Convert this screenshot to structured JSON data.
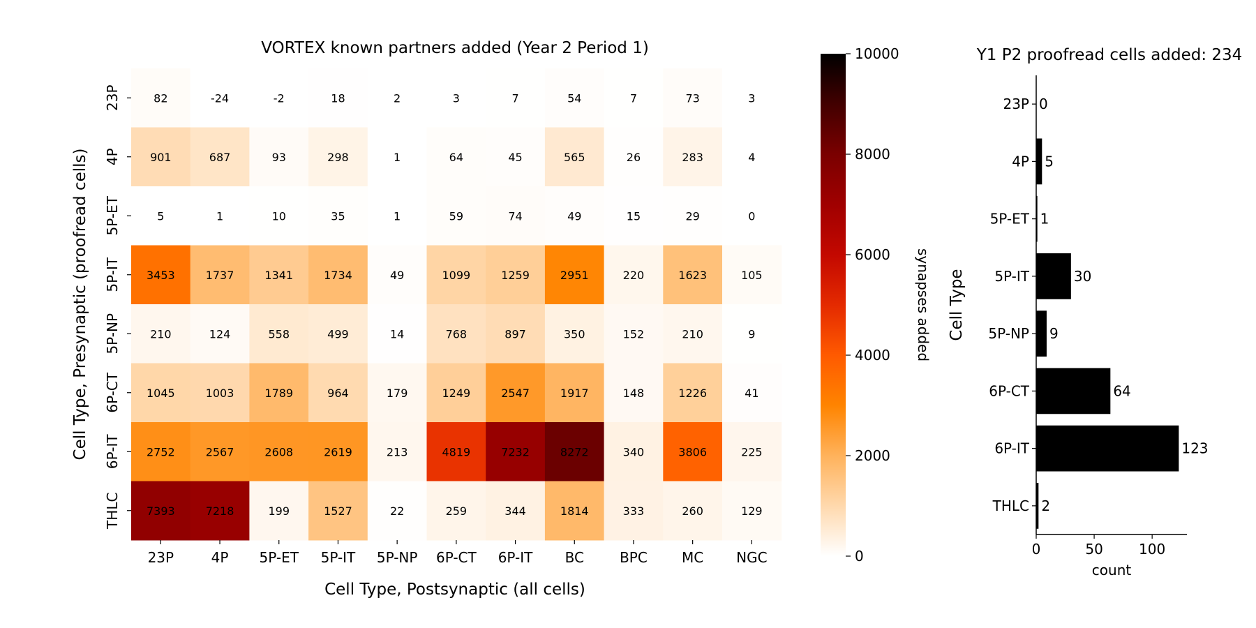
{
  "chart_data": [
    {
      "type": "heatmap",
      "title": "VORTEX known partners added (Year 2 Period 1)",
      "xlabel": "Cell Type, Postsynaptic (all cells)",
      "ylabel": "Cell Type, Presynaptic (proofread cells)",
      "x_categories": [
        "23P",
        "4P",
        "5P-ET",
        "5P-IT",
        "5P-NP",
        "6P-CT",
        "6P-IT",
        "BC",
        "BPC",
        "MC",
        "NGC"
      ],
      "y_categories": [
        "23P",
        "4P",
        "5P-ET",
        "5P-IT",
        "5P-NP",
        "6P-CT",
        "6P-IT",
        "THLC"
      ],
      "values": [
        [
          82,
          -24,
          -2,
          18,
          2,
          3,
          7,
          54,
          7,
          73,
          3
        ],
        [
          901,
          687,
          93,
          298,
          1,
          64,
          45,
          565,
          26,
          283,
          4
        ],
        [
          5,
          1,
          10,
          35,
          1,
          59,
          74,
          49,
          15,
          29,
          0
        ],
        [
          3453,
          1737,
          1341,
          1734,
          49,
          1099,
          1259,
          2951,
          220,
          1623,
          105
        ],
        [
          210,
          124,
          558,
          499,
          14,
          768,
          897,
          350,
          152,
          210,
          9
        ],
        [
          1045,
          1003,
          1789,
          964,
          179,
          1249,
          2547,
          1917,
          148,
          1226,
          41
        ],
        [
          2752,
          2567,
          2608,
          2619,
          213,
          4819,
          7232,
          8272,
          340,
          3806,
          225
        ],
        [
          7393,
          7218,
          199,
          1527,
          22,
          259,
          344,
          1814,
          333,
          260,
          129
        ]
      ],
      "colormap": "gist_heat_r",
      "colorbar": {
        "label": "synapses added",
        "range": [
          0,
          10000
        ],
        "ticks": [
          "0",
          "2000",
          "4000",
          "6000",
          "8000",
          "10000"
        ]
      }
    },
    {
      "type": "bar",
      "orientation": "horizontal",
      "title": "Y1 P2 proofread cells added: 234",
      "xlabel": "count",
      "ylabel": "Cell Type",
      "categories": [
        "23P",
        "4P",
        "5P-ET",
        "5P-IT",
        "5P-NP",
        "6P-CT",
        "6P-IT",
        "THLC"
      ],
      "values": [
        0,
        5,
        1,
        30,
        9,
        64,
        123,
        2
      ],
      "xlim": [
        0,
        130
      ],
      "xticks": [
        "0",
        "50",
        "100"
      ],
      "bar_color": "#000000"
    }
  ]
}
